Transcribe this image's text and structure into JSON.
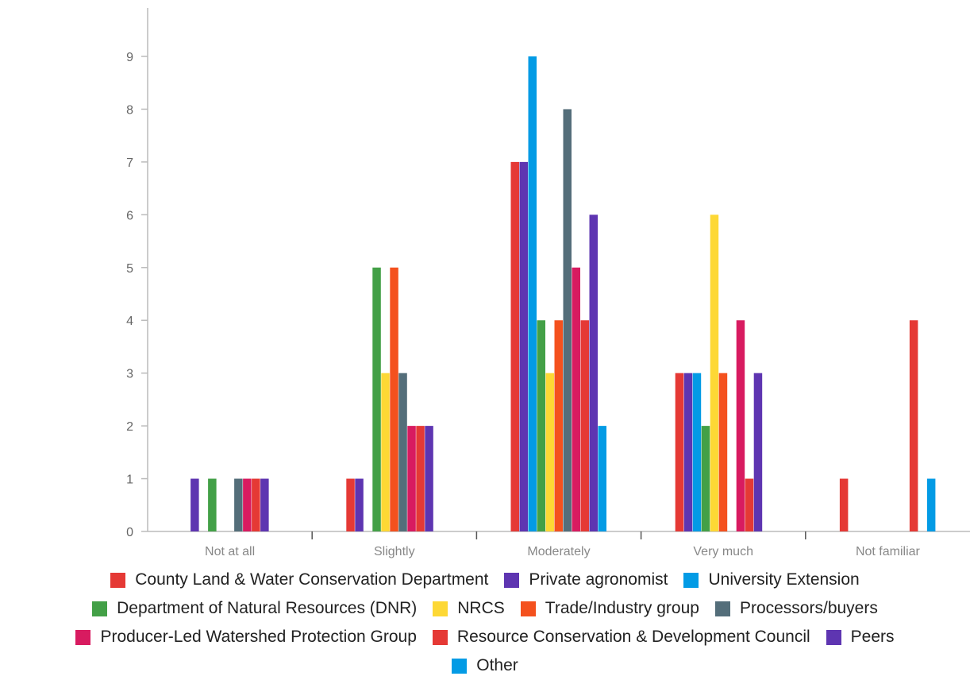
{
  "chart_data": {
    "type": "bar",
    "categories": [
      "Not at all",
      "Slightly",
      "Moderately",
      "Very much",
      "Not familiar"
    ],
    "ylim": [
      0,
      9
    ],
    "yticks": [
      0,
      1,
      2,
      3,
      4,
      5,
      6,
      7,
      8,
      9
    ],
    "grid": false,
    "legend_position": "bottom",
    "series": [
      {
        "name": "County Land & Water Conservation Department",
        "color": "#e53935",
        "values": [
          0,
          1,
          7,
          3,
          1
        ]
      },
      {
        "name": "Private agronomist",
        "color": "#5e35b1",
        "values": [
          1,
          1,
          7,
          3,
          0
        ]
      },
      {
        "name": "University Extension",
        "color": "#039be5",
        "values": [
          0,
          0,
          9,
          3,
          0
        ]
      },
      {
        "name": "Department of Natural Resources (DNR)",
        "color": "#43a047",
        "values": [
          1,
          5,
          4,
          2,
          0
        ]
      },
      {
        "name": "NRCS",
        "color": "#fdd835",
        "values": [
          0,
          3,
          3,
          6,
          0
        ]
      },
      {
        "name": "Trade/Industry group",
        "color": "#f4511e",
        "values": [
          0,
          5,
          4,
          3,
          0
        ]
      },
      {
        "name": "Processors/buyers",
        "color": "#546e7a",
        "values": [
          1,
          3,
          8,
          0,
          0
        ]
      },
      {
        "name": "Producer-Led Watershed Protection Group",
        "color": "#d81b60",
        "values": [
          1,
          2,
          5,
          4,
          0
        ]
      },
      {
        "name": "Resource Conservation & Development Council",
        "color": "#e53935",
        "values": [
          1,
          2,
          4,
          1,
          4
        ]
      },
      {
        "name": "Peers",
        "color": "#5e35b1",
        "values": [
          1,
          2,
          6,
          3,
          0
        ]
      },
      {
        "name": "Other",
        "color": "#039be5",
        "values": [
          0,
          0,
          2,
          0,
          1
        ]
      }
    ]
  },
  "legend_rows": [
    [
      0,
      1,
      2
    ],
    [
      3,
      4,
      5,
      6
    ],
    [
      7,
      8,
      9
    ],
    [
      10
    ]
  ]
}
